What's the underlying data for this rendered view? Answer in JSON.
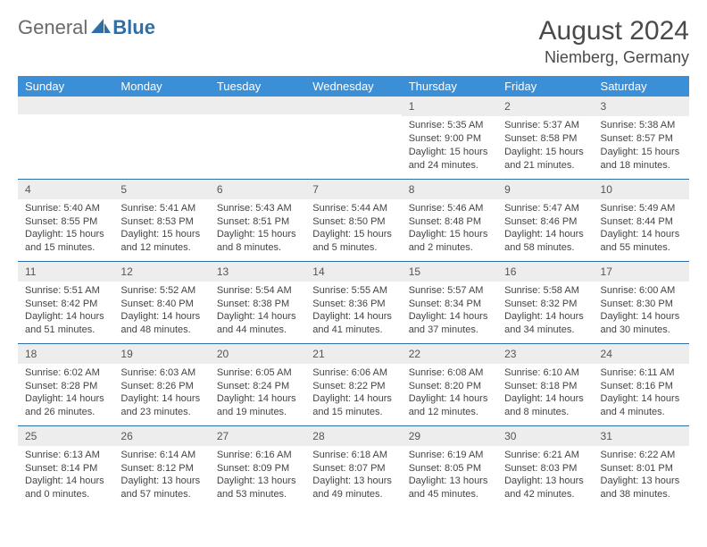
{
  "logo": {
    "general": "General",
    "blue": "Blue",
    "icon_color": "#2f6fa7"
  },
  "header": {
    "title": "August 2024",
    "location": "Niemberg, Germany"
  },
  "colors": {
    "header_bg": "#3b8fd6",
    "header_text": "#ffffff",
    "border": "#2f6fa7",
    "daynum_bg": "#ededed",
    "text": "#444444"
  },
  "day_headers": [
    "Sunday",
    "Monday",
    "Tuesday",
    "Wednesday",
    "Thursday",
    "Friday",
    "Saturday"
  ],
  "weeks": [
    [
      {
        "num": "",
        "lines": [
          "",
          "",
          "",
          ""
        ]
      },
      {
        "num": "",
        "lines": [
          "",
          "",
          "",
          ""
        ]
      },
      {
        "num": "",
        "lines": [
          "",
          "",
          "",
          ""
        ]
      },
      {
        "num": "",
        "lines": [
          "",
          "",
          "",
          ""
        ]
      },
      {
        "num": "1",
        "lines": [
          "Sunrise: 5:35 AM",
          "Sunset: 9:00 PM",
          "Daylight: 15 hours",
          "and 24 minutes."
        ]
      },
      {
        "num": "2",
        "lines": [
          "Sunrise: 5:37 AM",
          "Sunset: 8:58 PM",
          "Daylight: 15 hours",
          "and 21 minutes."
        ]
      },
      {
        "num": "3",
        "lines": [
          "Sunrise: 5:38 AM",
          "Sunset: 8:57 PM",
          "Daylight: 15 hours",
          "and 18 minutes."
        ]
      }
    ],
    [
      {
        "num": "4",
        "lines": [
          "Sunrise: 5:40 AM",
          "Sunset: 8:55 PM",
          "Daylight: 15 hours",
          "and 15 minutes."
        ]
      },
      {
        "num": "5",
        "lines": [
          "Sunrise: 5:41 AM",
          "Sunset: 8:53 PM",
          "Daylight: 15 hours",
          "and 12 minutes."
        ]
      },
      {
        "num": "6",
        "lines": [
          "Sunrise: 5:43 AM",
          "Sunset: 8:51 PM",
          "Daylight: 15 hours",
          "and 8 minutes."
        ]
      },
      {
        "num": "7",
        "lines": [
          "Sunrise: 5:44 AM",
          "Sunset: 8:50 PM",
          "Daylight: 15 hours",
          "and 5 minutes."
        ]
      },
      {
        "num": "8",
        "lines": [
          "Sunrise: 5:46 AM",
          "Sunset: 8:48 PM",
          "Daylight: 15 hours",
          "and 2 minutes."
        ]
      },
      {
        "num": "9",
        "lines": [
          "Sunrise: 5:47 AM",
          "Sunset: 8:46 PM",
          "Daylight: 14 hours",
          "and 58 minutes."
        ]
      },
      {
        "num": "10",
        "lines": [
          "Sunrise: 5:49 AM",
          "Sunset: 8:44 PM",
          "Daylight: 14 hours",
          "and 55 minutes."
        ]
      }
    ],
    [
      {
        "num": "11",
        "lines": [
          "Sunrise: 5:51 AM",
          "Sunset: 8:42 PM",
          "Daylight: 14 hours",
          "and 51 minutes."
        ]
      },
      {
        "num": "12",
        "lines": [
          "Sunrise: 5:52 AM",
          "Sunset: 8:40 PM",
          "Daylight: 14 hours",
          "and 48 minutes."
        ]
      },
      {
        "num": "13",
        "lines": [
          "Sunrise: 5:54 AM",
          "Sunset: 8:38 PM",
          "Daylight: 14 hours",
          "and 44 minutes."
        ]
      },
      {
        "num": "14",
        "lines": [
          "Sunrise: 5:55 AM",
          "Sunset: 8:36 PM",
          "Daylight: 14 hours",
          "and 41 minutes."
        ]
      },
      {
        "num": "15",
        "lines": [
          "Sunrise: 5:57 AM",
          "Sunset: 8:34 PM",
          "Daylight: 14 hours",
          "and 37 minutes."
        ]
      },
      {
        "num": "16",
        "lines": [
          "Sunrise: 5:58 AM",
          "Sunset: 8:32 PM",
          "Daylight: 14 hours",
          "and 34 minutes."
        ]
      },
      {
        "num": "17",
        "lines": [
          "Sunrise: 6:00 AM",
          "Sunset: 8:30 PM",
          "Daylight: 14 hours",
          "and 30 minutes."
        ]
      }
    ],
    [
      {
        "num": "18",
        "lines": [
          "Sunrise: 6:02 AM",
          "Sunset: 8:28 PM",
          "Daylight: 14 hours",
          "and 26 minutes."
        ]
      },
      {
        "num": "19",
        "lines": [
          "Sunrise: 6:03 AM",
          "Sunset: 8:26 PM",
          "Daylight: 14 hours",
          "and 23 minutes."
        ]
      },
      {
        "num": "20",
        "lines": [
          "Sunrise: 6:05 AM",
          "Sunset: 8:24 PM",
          "Daylight: 14 hours",
          "and 19 minutes."
        ]
      },
      {
        "num": "21",
        "lines": [
          "Sunrise: 6:06 AM",
          "Sunset: 8:22 PM",
          "Daylight: 14 hours",
          "and 15 minutes."
        ]
      },
      {
        "num": "22",
        "lines": [
          "Sunrise: 6:08 AM",
          "Sunset: 8:20 PM",
          "Daylight: 14 hours",
          "and 12 minutes."
        ]
      },
      {
        "num": "23",
        "lines": [
          "Sunrise: 6:10 AM",
          "Sunset: 8:18 PM",
          "Daylight: 14 hours",
          "and 8 minutes."
        ]
      },
      {
        "num": "24",
        "lines": [
          "Sunrise: 6:11 AM",
          "Sunset: 8:16 PM",
          "Daylight: 14 hours",
          "and 4 minutes."
        ]
      }
    ],
    [
      {
        "num": "25",
        "lines": [
          "Sunrise: 6:13 AM",
          "Sunset: 8:14 PM",
          "Daylight: 14 hours",
          "and 0 minutes."
        ]
      },
      {
        "num": "26",
        "lines": [
          "Sunrise: 6:14 AM",
          "Sunset: 8:12 PM",
          "Daylight: 13 hours",
          "and 57 minutes."
        ]
      },
      {
        "num": "27",
        "lines": [
          "Sunrise: 6:16 AM",
          "Sunset: 8:09 PM",
          "Daylight: 13 hours",
          "and 53 minutes."
        ]
      },
      {
        "num": "28",
        "lines": [
          "Sunrise: 6:18 AM",
          "Sunset: 8:07 PM",
          "Daylight: 13 hours",
          "and 49 minutes."
        ]
      },
      {
        "num": "29",
        "lines": [
          "Sunrise: 6:19 AM",
          "Sunset: 8:05 PM",
          "Daylight: 13 hours",
          "and 45 minutes."
        ]
      },
      {
        "num": "30",
        "lines": [
          "Sunrise: 6:21 AM",
          "Sunset: 8:03 PM",
          "Daylight: 13 hours",
          "and 42 minutes."
        ]
      },
      {
        "num": "31",
        "lines": [
          "Sunrise: 6:22 AM",
          "Sunset: 8:01 PM",
          "Daylight: 13 hours",
          "and 38 minutes."
        ]
      }
    ]
  ]
}
